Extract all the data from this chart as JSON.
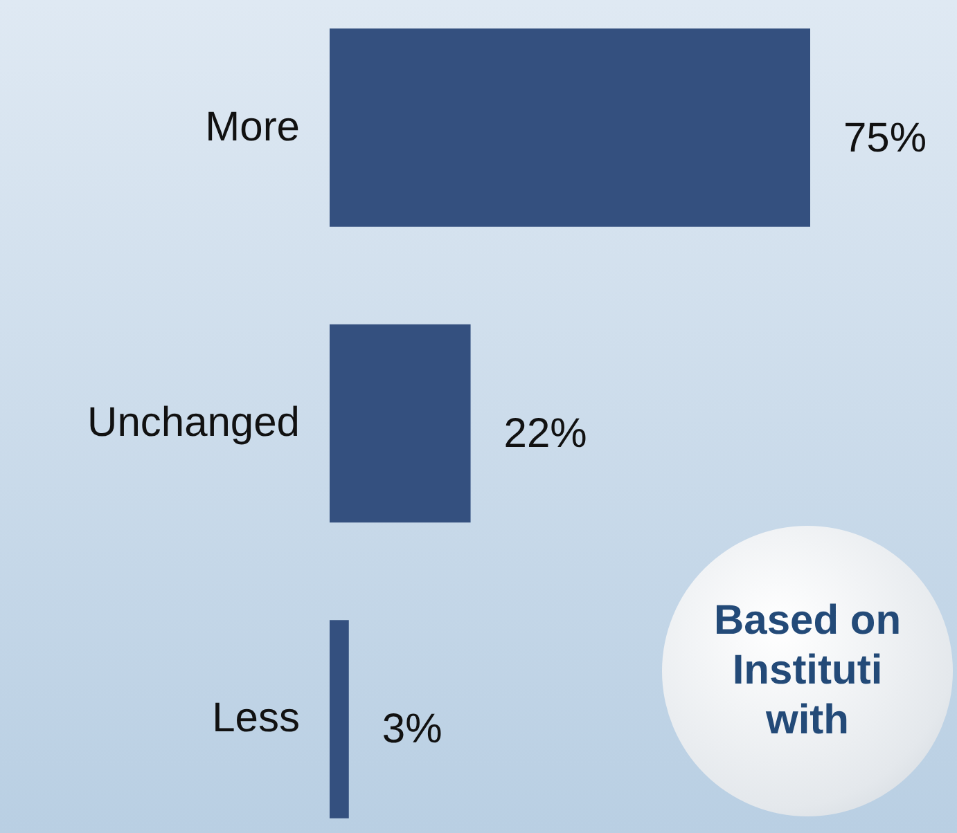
{
  "chart_data": {
    "type": "bar",
    "orientation": "horizontal",
    "categories": [
      "More",
      "Unchanged",
      "Less"
    ],
    "values": [
      75,
      22,
      3
    ],
    "value_labels": [
      "75%",
      "22%",
      "3%"
    ],
    "color": "#34507f",
    "annotations": [
      "Based on",
      "Instituti",
      "with"
    ]
  }
}
